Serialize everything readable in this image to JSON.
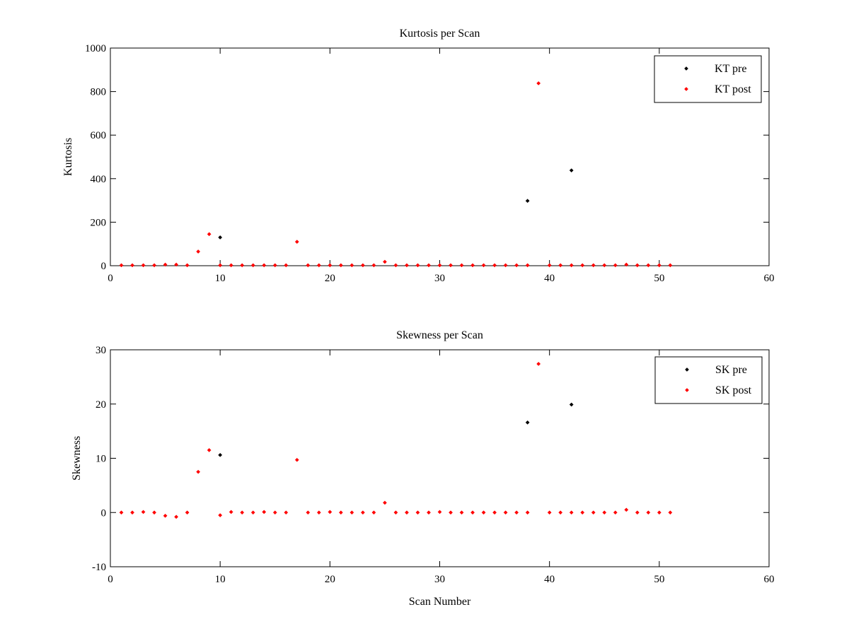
{
  "chart_data": [
    {
      "type": "scatter",
      "title": "Kurtosis per Scan",
      "xlabel": "",
      "ylabel": "Kurtosis",
      "xlim": [
        0,
        60
      ],
      "ylim": [
        0,
        1000
      ],
      "xticks": [
        "0",
        "10",
        "20",
        "30",
        "40",
        "50",
        "60"
      ],
      "yticks": [
        "0",
        "200",
        "400",
        "600",
        "800",
        "1000"
      ],
      "grid": false,
      "legend_position": "top-right",
      "series": [
        {
          "name": "KT pre",
          "color": "#000000",
          "x": [
            10,
            38,
            42
          ],
          "y": [
            130,
            298,
            438
          ]
        },
        {
          "name": "KT post",
          "color": "#ff0000",
          "x": [
            1,
            2,
            3,
            4,
            5,
            6,
            7,
            8,
            9,
            10,
            11,
            12,
            13,
            14,
            15,
            16,
            17,
            18,
            19,
            20,
            21,
            22,
            23,
            24,
            25,
            26,
            27,
            28,
            29,
            30,
            31,
            32,
            33,
            34,
            35,
            36,
            37,
            38,
            39,
            40,
            41,
            42,
            43,
            44,
            45,
            46,
            47,
            48,
            49,
            50,
            51
          ],
          "y": [
            2,
            2,
            2,
            2,
            5,
            5,
            2,
            65,
            145,
            2,
            2,
            2,
            2,
            2,
            2,
            2,
            110,
            2,
            2,
            2,
            2,
            2,
            2,
            2,
            18,
            2,
            2,
            2,
            2,
            2,
            2,
            2,
            2,
            2,
            2,
            2,
            2,
            2,
            838,
            2,
            2,
            2,
            2,
            2,
            2,
            2,
            5,
            2,
            2,
            2,
            2
          ]
        }
      ]
    },
    {
      "type": "scatter",
      "title": "Skewness per Scan",
      "xlabel": "Scan Number",
      "ylabel": "Skewness",
      "xlim": [
        0,
        60
      ],
      "ylim": [
        -10,
        30
      ],
      "xticks": [
        "0",
        "10",
        "20",
        "30",
        "40",
        "50",
        "60"
      ],
      "yticks": [
        "-10",
        "0",
        "10",
        "20",
        "30"
      ],
      "grid": false,
      "legend_position": "top-right",
      "series": [
        {
          "name": "SK pre",
          "color": "#000000",
          "x": [
            10,
            38,
            42
          ],
          "y": [
            10.6,
            16.6,
            19.9
          ]
        },
        {
          "name": "SK post",
          "color": "#ff0000",
          "x": [
            1,
            2,
            3,
            4,
            5,
            6,
            7,
            8,
            9,
            10,
            11,
            12,
            13,
            14,
            15,
            16,
            17,
            18,
            19,
            20,
            21,
            22,
            23,
            24,
            25,
            26,
            27,
            28,
            29,
            30,
            31,
            32,
            33,
            34,
            35,
            36,
            37,
            38,
            39,
            40,
            41,
            42,
            43,
            44,
            45,
            46,
            47,
            48,
            49,
            50,
            51
          ],
          "y": [
            0,
            0,
            0.1,
            0,
            -0.6,
            -0.8,
            0,
            7.5,
            11.5,
            -0.5,
            0.1,
            0,
            0,
            0.1,
            0,
            0,
            9.7,
            0,
            0,
            0.1,
            0,
            0,
            0,
            0,
            1.8,
            0,
            0,
            0,
            0,
            0.1,
            0,
            0,
            0,
            0,
            0,
            0,
            0,
            0,
            27.4,
            0,
            0,
            0,
            0,
            0,
            0,
            0,
            0.5,
            0,
            0,
            0,
            0
          ]
        }
      ]
    }
  ]
}
